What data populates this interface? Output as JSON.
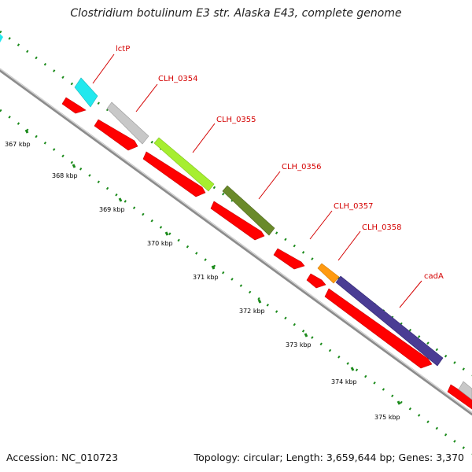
{
  "title": "Clostridium botulinum E3 str. Alaska E43, complete genome",
  "accession_text": "Accession: NC_010723",
  "summary_text": "Topology: circular; Length: 3,659,644 bp; Genes: 3,370",
  "colors": {
    "backbone": "#8c8c8c",
    "cds": "#ff0000",
    "tick": "#1a8a1a",
    "label": "#d40000"
  },
  "kbp_labels": [
    "367 kbp",
    "368 kbp",
    "369 kbp",
    "370 kbp",
    "371 kbp",
    "372 kbp",
    "373 kbp",
    "374 kbp",
    "375 kbp"
  ],
  "genes": [
    {
      "name": "lctP",
      "color": "#22e8ee"
    },
    {
      "name": "CLH_0354",
      "color": "#c8c8c8"
    },
    {
      "name": "CLH_0355",
      "color": "#a6ee30"
    },
    {
      "name": "CLH_0356",
      "color": "#6a8a2a"
    },
    {
      "name": "CLH_0357",
      "color": ""
    },
    {
      "name": "CLH_0358",
      "color": "#ff9a10"
    },
    {
      "name": "cadA",
      "color": "#4a3c94"
    }
  ],
  "offscreen_genes": [
    {
      "color": "#22e8ee"
    },
    {
      "color": "#c8c8c8"
    }
  ]
}
